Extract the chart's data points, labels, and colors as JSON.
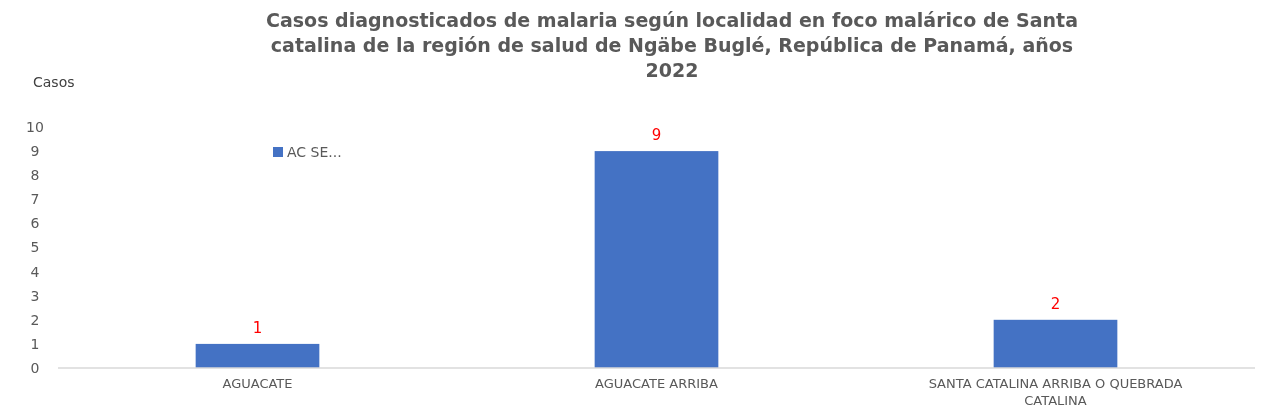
{
  "chart_data": {
    "type": "bar",
    "title": "Casos diagnosticados de malaria según localidad en foco malárico de Santa catalina de la región de salud de Ngäbe Buglé, República de Panamá, años 2022",
    "ylabel": "Casos",
    "categories": [
      "AGUACATE",
      "AGUACATE ARRIBA",
      "SANTA CATALINA ARRIBA O QUEBRADA CATALINA"
    ],
    "series": [
      {
        "name": "AC SE...",
        "color": "#4472c4",
        "values": [
          1,
          9,
          2
        ]
      }
    ],
    "ylim": [
      0,
      10
    ],
    "yticks": [
      0,
      1,
      2,
      3,
      4,
      5,
      6,
      7,
      8,
      9,
      10
    ],
    "data_labels": true,
    "legend": "top left",
    "grid": false
  }
}
